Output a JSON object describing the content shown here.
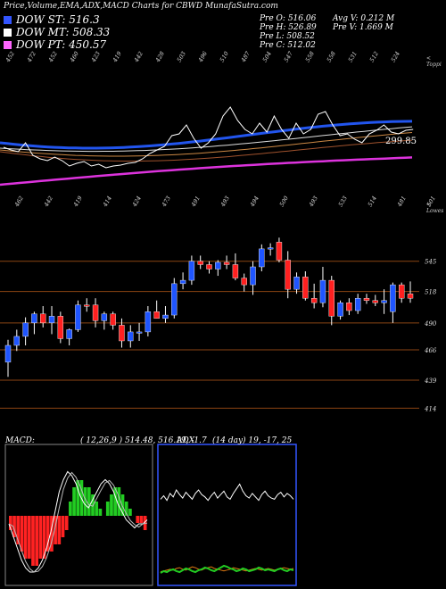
{
  "header": {
    "title": "Price,Volume,EMA,ADX,MACD Charts for CBWD MunafaSutra.com",
    "prev_open": "Pre   O: 516.06",
    "prev_high": "Pre   H: 526.89",
    "prev_low": "Pre   L: 508.52",
    "prev_close": "Pre   C: 512.02",
    "avg_vol": "Avg V: 0.212  M",
    "pre_vol": "Pre   V: 1.669 M"
  },
  "legend": [
    {
      "label": "DOW ST: 516.3",
      "color": "#3355ff"
    },
    {
      "label": "DOW MT: 508.33",
      "color": "#ffffff"
    },
    {
      "label": "DOW PT: 450.57",
      "color": "#ff66ff"
    }
  ],
  "ema_panel": {
    "top_labels": [
      "452",
      "472",
      "452",
      "460",
      "423",
      "419",
      "442",
      "428",
      "503",
      "496",
      "510",
      "487",
      "504",
      "547",
      "558",
      "558",
      "531",
      "512",
      "524"
    ],
    "bottom_labels": [
      "462",
      "442",
      "419",
      "414",
      "424",
      "473",
      "491",
      "493",
      "494",
      "500",
      "493",
      "533",
      "514",
      "481",
      "501"
    ],
    "corner_top": "< Toppi",
    "corner_bottom": "< Lowes",
    "price_label": "299.85",
    "colors": {
      "ema_st": "#2255ee",
      "price": "#ffffff",
      "dow_pt": "#dd33dd",
      "ema_brown": "#a0522d"
    }
  },
  "candle_panel": {
    "levels": [
      "545",
      "518",
      "490",
      "466",
      "439",
      "414"
    ],
    "colors": {
      "up": "#1f55ff",
      "down": "#ff2020",
      "grid": "#8b4513"
    }
  },
  "macd_panel": {
    "label": "MACD:",
    "values": "( 12,26,9 ) 514.48, 516.19, -1.7",
    "colors": {
      "pos": "#22cc22",
      "neg": "#ff2222"
    }
  },
  "adx_panel": {
    "label": "ADX",
    "values": "(14  day) 19, -17, 25",
    "colors": {
      "adx": "#ffffff",
      "plus": "#22cc22",
      "minus": "#dd7711"
    }
  },
  "chart_data": {
    "type": "candlestick",
    "title": "Price,Volume,EMA,ADX,MACD Charts for CBWD MunafaSutra.com",
    "candles": [
      {
        "o": 455,
        "h": 475,
        "l": 442,
        "c": 470
      },
      {
        "o": 470,
        "h": 484,
        "l": 465,
        "c": 478
      },
      {
        "o": 478,
        "h": 495,
        "l": 470,
        "c": 490
      },
      {
        "o": 490,
        "h": 500,
        "l": 480,
        "c": 498
      },
      {
        "o": 498,
        "h": 505,
        "l": 486,
        "c": 490
      },
      {
        "o": 490,
        "h": 505,
        "l": 480,
        "c": 496
      },
      {
        "o": 496,
        "h": 500,
        "l": 472,
        "c": 476
      },
      {
        "o": 476,
        "h": 485,
        "l": 470,
        "c": 484
      },
      {
        "o": 484,
        "h": 510,
        "l": 482,
        "c": 506
      },
      {
        "o": 506,
        "h": 512,
        "l": 500,
        "c": 505
      },
      {
        "o": 506,
        "h": 512,
        "l": 486,
        "c": 492
      },
      {
        "o": 492,
        "h": 500,
        "l": 484,
        "c": 498
      },
      {
        "o": 498,
        "h": 500,
        "l": 484,
        "c": 488
      },
      {
        "o": 488,
        "h": 494,
        "l": 468,
        "c": 474
      },
      {
        "o": 474,
        "h": 488,
        "l": 468,
        "c": 482
      },
      {
        "o": 482,
        "h": 490,
        "l": 474,
        "c": 482
      },
      {
        "o": 482,
        "h": 505,
        "l": 478,
        "c": 500
      },
      {
        "o": 500,
        "h": 510,
        "l": 494,
        "c": 494
      },
      {
        "o": 494,
        "h": 505,
        "l": 490,
        "c": 497
      },
      {
        "o": 497,
        "h": 530,
        "l": 494,
        "c": 525
      },
      {
        "o": 525,
        "h": 535,
        "l": 520,
        "c": 528
      },
      {
        "o": 528,
        "h": 550,
        "l": 524,
        "c": 545
      },
      {
        "o": 545,
        "h": 550,
        "l": 538,
        "c": 542
      },
      {
        "o": 542,
        "h": 545,
        "l": 534,
        "c": 538
      },
      {
        "o": 538,
        "h": 546,
        "l": 532,
        "c": 544
      },
      {
        "o": 544,
        "h": 550,
        "l": 538,
        "c": 542
      },
      {
        "o": 542,
        "h": 552,
        "l": 528,
        "c": 530
      },
      {
        "o": 530,
        "h": 534,
        "l": 518,
        "c": 524
      },
      {
        "o": 524,
        "h": 545,
        "l": 515,
        "c": 540
      },
      {
        "o": 540,
        "h": 560,
        "l": 536,
        "c": 556
      },
      {
        "o": 556,
        "h": 561,
        "l": 550,
        "c": 557
      },
      {
        "o": 562,
        "h": 566,
        "l": 544,
        "c": 546
      },
      {
        "o": 546,
        "h": 554,
        "l": 512,
        "c": 520
      },
      {
        "o": 520,
        "h": 535,
        "l": 516,
        "c": 531
      },
      {
        "o": 531,
        "h": 536,
        "l": 510,
        "c": 512
      },
      {
        "o": 512,
        "h": 525,
        "l": 503,
        "c": 508
      },
      {
        "o": 508,
        "h": 540,
        "l": 504,
        "c": 528
      },
      {
        "o": 528,
        "h": 532,
        "l": 488,
        "c": 496
      },
      {
        "o": 496,
        "h": 510,
        "l": 493,
        "c": 508
      },
      {
        "o": 508,
        "h": 512,
        "l": 497,
        "c": 501
      },
      {
        "o": 501,
        "h": 516,
        "l": 498,
        "c": 512
      },
      {
        "o": 512,
        "h": 516,
        "l": 507,
        "c": 510
      },
      {
        "o": 510,
        "h": 515,
        "l": 505,
        "c": 508
      },
      {
        "o": 508,
        "h": 520,
        "l": 498,
        "c": 510
      },
      {
        "o": 500,
        "h": 526,
        "l": 490,
        "c": 524
      },
      {
        "o": 524,
        "h": 526,
        "l": 508,
        "c": 512
      },
      {
        "o": 516,
        "h": 527,
        "l": 508,
        "c": 512
      }
    ],
    "price_levels": [
      545,
      518,
      490,
      466,
      439,
      414
    ],
    "ylim": [
      400,
      575
    ],
    "series": [
      {
        "name": "DOW ST",
        "value": 516.3
      },
      {
        "name": "DOW MT",
        "value": 508.33
      },
      {
        "name": "DOW PT",
        "value": 450.57
      }
    ],
    "macd": {
      "fast": 12,
      "slow": 26,
      "signal": 9,
      "values": [
        514.48,
        516.19,
        -1.7
      ],
      "histogram": [
        -2,
        -3,
        -4,
        -5,
        -6,
        -6,
        -7,
        -7,
        -6,
        -6,
        -5,
        -5,
        -4,
        -4,
        -3,
        -2,
        2,
        4,
        5,
        5,
        4,
        4,
        3,
        2,
        1,
        0,
        2,
        3,
        4,
        4,
        3,
        2,
        1,
        0,
        -1,
        -1,
        -2
      ],
      "macd_line": [
        -2,
        -5,
        -8,
        -11,
        -13,
        -14,
        -14,
        -13,
        -11,
        -8,
        -4,
        1,
        6,
        9,
        11,
        10,
        8,
        5,
        3,
        2,
        4,
        6,
        8,
        9,
        8,
        6,
        3,
        1,
        -1,
        -2,
        -3,
        -2,
        -2,
        -1
      ]
    },
    "adx": {
      "period": 14,
      "values": [
        19,
        -17,
        25
      ],
      "adx_line": [
        22,
        25,
        21,
        27,
        24,
        30,
        26,
        23,
        28,
        25,
        22,
        27,
        30,
        26,
        24,
        21,
        25,
        28,
        23,
        26,
        29,
        24,
        22,
        27,
        31,
        35,
        29,
        25,
        23,
        27,
        24,
        21,
        26,
        29,
        25,
        23,
        22,
        26,
        28,
        24,
        27,
        25,
        22
      ],
      "plus_di": [
        8,
        10,
        9,
        11,
        12,
        10,
        9,
        11,
        13,
        12,
        10,
        9,
        11,
        12,
        14,
        13,
        11,
        10,
        12,
        14,
        16,
        15,
        13,
        12,
        10,
        11,
        13,
        12,
        10,
        11,
        12,
        14,
        13,
        11,
        12,
        11,
        10,
        12,
        13,
        11,
        10,
        12,
        11
      ],
      "minus_di": [
        6,
        7,
        8,
        9,
        8,
        10,
        11,
        9,
        8,
        10,
        12,
        11,
        9,
        8,
        10,
        11,
        12,
        10,
        9,
        8,
        7,
        8,
        9,
        11,
        10,
        9,
        8,
        7,
        8,
        9,
        10,
        9,
        8,
        9,
        10,
        9,
        8,
        9,
        10,
        11,
        10,
        9,
        10
      ]
    }
  }
}
